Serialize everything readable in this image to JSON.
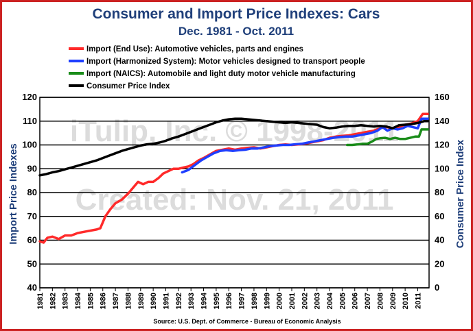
{
  "chart_data": {
    "type": "line",
    "title": "Consumer and Import Price Indexes: Cars",
    "subtitle": "Dec. 1981 - Oct. 2011",
    "ylabel_left": "Import Price Indexes",
    "ylabel_right": "Consumer Price Index",
    "ylim_left": [
      40,
      120
    ],
    "ylim_right": [
      0,
      160
    ],
    "yticks_left": [
      "40",
      "50",
      "60",
      "70",
      "80",
      "90",
      "100",
      "110",
      "120"
    ],
    "yticks_right": [
      "0",
      "20",
      "40",
      "60",
      "80",
      "100",
      "120",
      "140",
      "160"
    ],
    "xlim": [
      1981,
      2011.9
    ],
    "xtick_labels": [
      "1981",
      "1982",
      "1983",
      "1984",
      "1985",
      "1986",
      "1987",
      "1988",
      "1989",
      "1990",
      "1991",
      "1992",
      "1993",
      "1994",
      "1995",
      "1996",
      "1997",
      "1998",
      "1999",
      "2000",
      "2001",
      "2002",
      "2003",
      "2004",
      "2005",
      "2006",
      "2007",
      "2008",
      "2009",
      "2010",
      "2011"
    ],
    "grid": "horizontal",
    "legend_position": "top-left",
    "watermark": [
      "iTulip, Inc. © 1998-2011",
      "Created: Nov. 21, 2011"
    ],
    "source": "Source: U.S. Dept. of Commerce - Bureau of Economic Analysis",
    "series": [
      {
        "name": "Import (End Use): Automotive vehicles, parts and engines",
        "color": "#ff2a2a",
        "axis": "left",
        "x": [
          1981.0,
          1981.3,
          1981.6,
          1982.0,
          1982.5,
          1983.0,
          1983.5,
          1984.0,
          1984.5,
          1985.0,
          1985.5,
          1985.8,
          1986.2,
          1986.6,
          1987.0,
          1987.5,
          1988.0,
          1988.4,
          1988.8,
          1989.2,
          1989.6,
          1990.0,
          1990.4,
          1990.8,
          1991.2,
          1991.6,
          1992.0,
          1992.4,
          1992.8,
          1993.2,
          1993.6,
          1994.0,
          1994.5,
          1995.0,
          1995.5,
          1996.0,
          1996.5,
          1997.0,
          1997.5,
          1998.0,
          1998.5,
          1999.0,
          1999.5,
          2000.0,
          2000.5,
          2001.0,
          2001.5,
          2002.0,
          2002.5,
          2003.0,
          2003.5,
          2004.0,
          2004.5,
          2005.0,
          2005.5,
          2006.0,
          2006.5,
          2007.0,
          2007.5,
          2008.0,
          2008.5,
          2009.0,
          2009.5,
          2010.0,
          2010.5,
          2011.0,
          2011.4,
          2011.8
        ],
        "values": [
          59.5,
          59.0,
          61.0,
          61.5,
          60.5,
          62.0,
          62.0,
          63.0,
          63.5,
          64.0,
          64.5,
          65.0,
          70.0,
          73.0,
          75.5,
          77.0,
          79.5,
          82.0,
          84.5,
          83.5,
          84.5,
          84.5,
          86.0,
          88.0,
          89.0,
          90.0,
          90.0,
          90.5,
          91.0,
          92.0,
          93.5,
          94.5,
          96.0,
          97.5,
          98.0,
          98.5,
          98.0,
          98.5,
          98.8,
          99.0,
          98.5,
          99.0,
          99.5,
          100.0,
          100.2,
          100.0,
          100.2,
          100.5,
          101.0,
          101.5,
          102.0,
          103.0,
          103.5,
          103.8,
          104.0,
          104.5,
          105.0,
          105.5,
          106.0,
          107.0,
          107.5,
          107.0,
          107.5,
          108.5,
          109.0,
          110.0,
          113.0,
          113.0
        ]
      },
      {
        "name": "Import (Harmonized System): Motor vehicles designed to transport people",
        "color": "#1f3fff",
        "axis": "left",
        "x": [
          1992.3,
          1992.8,
          1993.3,
          1993.8,
          1994.3,
          1994.8,
          1995.3,
          1995.8,
          1996.3,
          1996.8,
          1997.3,
          1997.8,
          1998.3,
          1998.8,
          1999.3,
          1999.8,
          2000.3,
          2000.8,
          2001.3,
          2001.8,
          2002.3,
          2002.8,
          2003.3,
          2003.8,
          2004.3,
          2004.8,
          2005.3,
          2005.8,
          2006.3,
          2006.8,
          2007.3,
          2007.8,
          2008.2,
          2008.6,
          2009.0,
          2009.4,
          2009.8,
          2010.2,
          2010.6,
          2011.0,
          2011.3,
          2011.8
        ],
        "values": [
          88.5,
          89.5,
          91.5,
          93.5,
          95.0,
          96.5,
          97.5,
          97.8,
          97.5,
          97.8,
          98.0,
          98.5,
          98.5,
          99.0,
          99.5,
          99.8,
          100.0,
          100.0,
          100.3,
          100.5,
          101.0,
          101.5,
          102.0,
          102.5,
          103.0,
          103.3,
          103.5,
          103.5,
          104.0,
          104.5,
          105.0,
          106.0,
          107.5,
          106.0,
          107.0,
          106.5,
          107.0,
          108.0,
          107.5,
          107.0,
          111.0,
          111.0
        ]
      },
      {
        "name": "Import (NAICS): Automobile and light duty motor vehicle manufacturing",
        "color": "#1a8c1a",
        "axis": "left",
        "x": [
          2005.4,
          2005.8,
          2006.2,
          2006.6,
          2007.0,
          2007.4,
          2007.7,
          2008.0,
          2008.4,
          2008.8,
          2009.2,
          2009.6,
          2010.0,
          2010.4,
          2010.8,
          2011.1,
          2011.3,
          2011.8
        ],
        "values": [
          100.0,
          100.0,
          100.2,
          100.5,
          100.5,
          101.5,
          102.5,
          102.8,
          103.0,
          102.5,
          103.0,
          102.5,
          102.5,
          103.0,
          103.5,
          103.5,
          106.5,
          106.5
        ]
      },
      {
        "name": "Consumer Price Index",
        "color": "#000000",
        "axis": "right",
        "x": [
          1981.0,
          1981.5,
          1982.0,
          1982.5,
          1983.0,
          1983.5,
          1984.0,
          1984.5,
          1985.0,
          1985.5,
          1986.0,
          1986.5,
          1987.0,
          1987.5,
          1988.0,
          1988.5,
          1989.0,
          1989.5,
          1990.0,
          1990.5,
          1991.0,
          1991.5,
          1992.0,
          1992.5,
          1993.0,
          1993.5,
          1994.0,
          1994.5,
          1995.0,
          1995.5,
          1996.0,
          1996.5,
          1997.0,
          1997.5,
          1998.0,
          1998.5,
          1999.0,
          1999.5,
          2000.0,
          2000.5,
          2001.0,
          2001.5,
          2002.0,
          2002.5,
          2003.0,
          2003.5,
          2004.0,
          2004.5,
          2005.0,
          2005.5,
          2006.0,
          2006.5,
          2007.0,
          2007.5,
          2008.0,
          2008.5,
          2009.0,
          2009.5,
          2010.0,
          2010.5,
          2011.0,
          2011.5,
          2011.8
        ],
        "values": [
          94.5,
          95.5,
          97.0,
          98.0,
          99.5,
          101.0,
          102.5,
          104.0,
          105.5,
          107.0,
          109.0,
          111.0,
          113.0,
          115.0,
          116.5,
          118.0,
          119.5,
          120.5,
          121.0,
          122.0,
          123.5,
          125.5,
          127.0,
          129.0,
          131.0,
          133.0,
          135.0,
          137.0,
          139.0,
          140.5,
          141.5,
          142.0,
          142.0,
          141.5,
          141.0,
          140.5,
          140.0,
          139.5,
          139.0,
          138.5,
          139.0,
          138.5,
          138.0,
          137.5,
          137.0,
          135.0,
          134.0,
          134.5,
          135.5,
          136.0,
          136.0,
          136.5,
          136.0,
          135.5,
          136.0,
          135.5,
          134.0,
          136.5,
          137.0,
          137.5,
          138.5,
          140.0,
          140.0
        ]
      }
    ]
  }
}
